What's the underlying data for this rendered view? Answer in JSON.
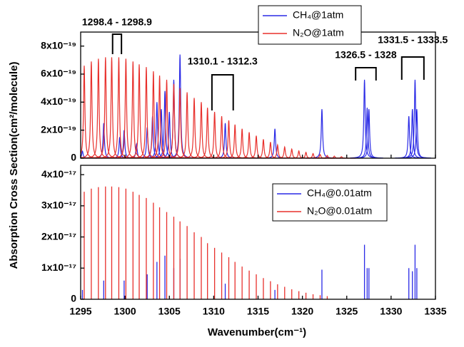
{
  "chart_data": [
    {
      "type": "line",
      "y_label": "Absorption Cross Section(cm²/molecule)",
      "xlim": [
        1295,
        1335
      ],
      "xticks": [
        1295,
        1300,
        1305,
        1310,
        1315,
        1320,
        1325,
        1330,
        1335
      ],
      "ylim": [
        0,
        9e-19
      ],
      "yticks": [
        0,
        {
          "value": 2e-19,
          "label": "2x10⁻¹⁹"
        },
        {
          "value": 4e-19,
          "label": "4x10⁻¹⁹"
        },
        {
          "value": 6e-19,
          "label": "6x10⁻¹⁹"
        },
        {
          "value": 8e-19,
          "label": "8x10⁻¹⁹"
        }
      ],
      "series": [
        {
          "name": "CH₄@1atm",
          "color": "#2a2ae6",
          "x": [
            1295.2,
            1297.6,
            1299.4,
            1299.9,
            1301.3,
            1302.5,
            1303.1,
            1303.6,
            1304.1,
            1304.5,
            1305.0,
            1305.5,
            1306.2,
            1311.3,
            1316.9,
            1322.2,
            1327.0,
            1327.3,
            1327.5,
            1332.0,
            1332.4,
            1332.7,
            1332.9
          ],
          "values": [
            5e-20,
            2.5e-19,
            1.5e-19,
            2e-19,
            1e-19,
            2.2e-19,
            3e-19,
            4e-19,
            3.5e-19,
            4.8e-19,
            3.3e-19,
            5.6e-19,
            7.4e-19,
            2.5e-19,
            2.1e-19,
            3.5e-19,
            5.6e-19,
            3.6e-19,
            3.5e-19,
            3e-19,
            3.5e-19,
            5.6e-19,
            3.5e-19
          ]
        },
        {
          "name": "N₂O@1atm",
          "color": "#e8302c",
          "x": [
            1295.4,
            1296.2,
            1297.0,
            1297.8,
            1298.5,
            1299.3,
            1300.1,
            1300.9,
            1301.6,
            1302.4,
            1303.2,
            1303.9,
            1304.7,
            1305.5,
            1306.2,
            1307.0,
            1307.8,
            1308.6,
            1309.3,
            1310.1,
            1310.9,
            1311.7,
            1312.4,
            1313.2,
            1314.0,
            1314.8,
            1315.6,
            1316.4,
            1317.2,
            1318.0,
            1318.8,
            1319.6,
            1320.4,
            1321.2,
            1322.0,
            1322.8,
            1323.6,
            1324.4
          ],
          "values": [
            6.6e-19,
            6.9e-19,
            7.1e-19,
            7.2e-19,
            7.2e-19,
            7.2e-19,
            7.1e-19,
            6.9e-19,
            6.7e-19,
            6.5e-19,
            6.2e-19,
            5.9e-19,
            5.6e-19,
            5.3e-19,
            5e-19,
            4.7e-19,
            4.3e-19,
            4e-19,
            3.6e-19,
            3.3e-19,
            3e-19,
            2.7e-19,
            2.4e-19,
            2.1e-19,
            1.85e-19,
            1.6e-19,
            1.35e-19,
            1.15e-19,
            9.5e-20,
            8e-20,
            6.5e-20,
            5.2e-20,
            4.2e-20,
            3.3e-20,
            2.6e-20,
            2e-20,
            1.5e-20,
            1.1e-20
          ]
        }
      ],
      "annotations": [
        {
          "text": "1298.4 - 1298.9",
          "x": [
            1298.6,
            1299.6
          ]
        },
        {
          "text": "1310.1 - 1312.3",
          "x": [
            1309.8,
            1312.2
          ]
        },
        {
          "text": "1326.5 - 1328",
          "x": [
            1326.0,
            1328.3
          ]
        },
        {
          "text": "1331.5 - 1333.5",
          "x": [
            1331.2,
            1333.7
          ]
        }
      ]
    },
    {
      "type": "line",
      "x_label": "Wavenumber(cm⁻¹)",
      "xlim": [
        1295,
        1335
      ],
      "xticks": [
        1295,
        1300,
        1305,
        1310,
        1315,
        1320,
        1325,
        1330,
        1335
      ],
      "ylim": [
        0,
        4.3e-17
      ],
      "yticks": [
        0,
        {
          "value": 1e-17,
          "label": "1x10⁻¹⁷"
        },
        {
          "value": 2e-17,
          "label": "2x10⁻¹⁷"
        },
        {
          "value": 3e-17,
          "label": "3x10⁻¹⁷"
        },
        {
          "value": 4e-17,
          "label": "4x10⁻¹⁷"
        }
      ],
      "series": [
        {
          "name": "CH₄@0.01atm",
          "color": "#2a2ae6",
          "x": [
            1295.2,
            1297.6,
            1299.9,
            1302.5,
            1303.6,
            1304.5,
            1305.5,
            1306.2,
            1311.3,
            1316.9,
            1322.2,
            1327.0,
            1327.3,
            1327.5,
            1332.0,
            1332.4,
            1332.7,
            1332.9
          ],
          "values": [
            3e-18,
            6e-18,
            6e-18,
            8e-18,
            1.2e-17,
            1.4e-17,
            1e-17,
            1.3e-17,
            5e-18,
            3e-18,
            9.5e-18,
            1.75e-17,
            1e-17,
            1e-17,
            1e-17,
            9e-18,
            1.75e-17,
            1e-17
          ]
        },
        {
          "name": "N₂O@0.01atm",
          "color": "#e8302c",
          "x": [
            1295.4,
            1296.2,
            1297.0,
            1297.8,
            1298.5,
            1299.3,
            1300.1,
            1300.9,
            1301.6,
            1302.4,
            1303.2,
            1303.9,
            1304.7,
            1305.5,
            1306.2,
            1307.0,
            1307.8,
            1308.6,
            1309.3,
            1310.1,
            1310.9,
            1311.7,
            1312.4,
            1313.2,
            1314.0,
            1314.8,
            1315.6,
            1316.4,
            1317.2,
            1318.0,
            1318.8,
            1319.6,
            1320.4,
            1321.2,
            1322.0,
            1322.8
          ],
          "values": [
            3.45e-17,
            3.55e-17,
            3.6e-17,
            3.62e-17,
            3.62e-17,
            3.6e-17,
            3.55e-17,
            3.45e-17,
            3.35e-17,
            3.25e-17,
            3.1e-17,
            2.95e-17,
            2.8e-17,
            2.65e-17,
            2.5e-17,
            2.35e-17,
            2.15e-17,
            2e-17,
            1.8e-17,
            1.65e-17,
            1.5e-17,
            1.35e-17,
            1.2e-17,
            1.05e-17,
            9.2e-18,
            8e-18,
            6.8e-18,
            5.8e-18,
            4.8e-18,
            4e-18,
            3.2e-18,
            2.6e-18,
            2.1e-18,
            1.6e-18,
            1.3e-18,
            1e-18
          ]
        }
      ]
    }
  ]
}
